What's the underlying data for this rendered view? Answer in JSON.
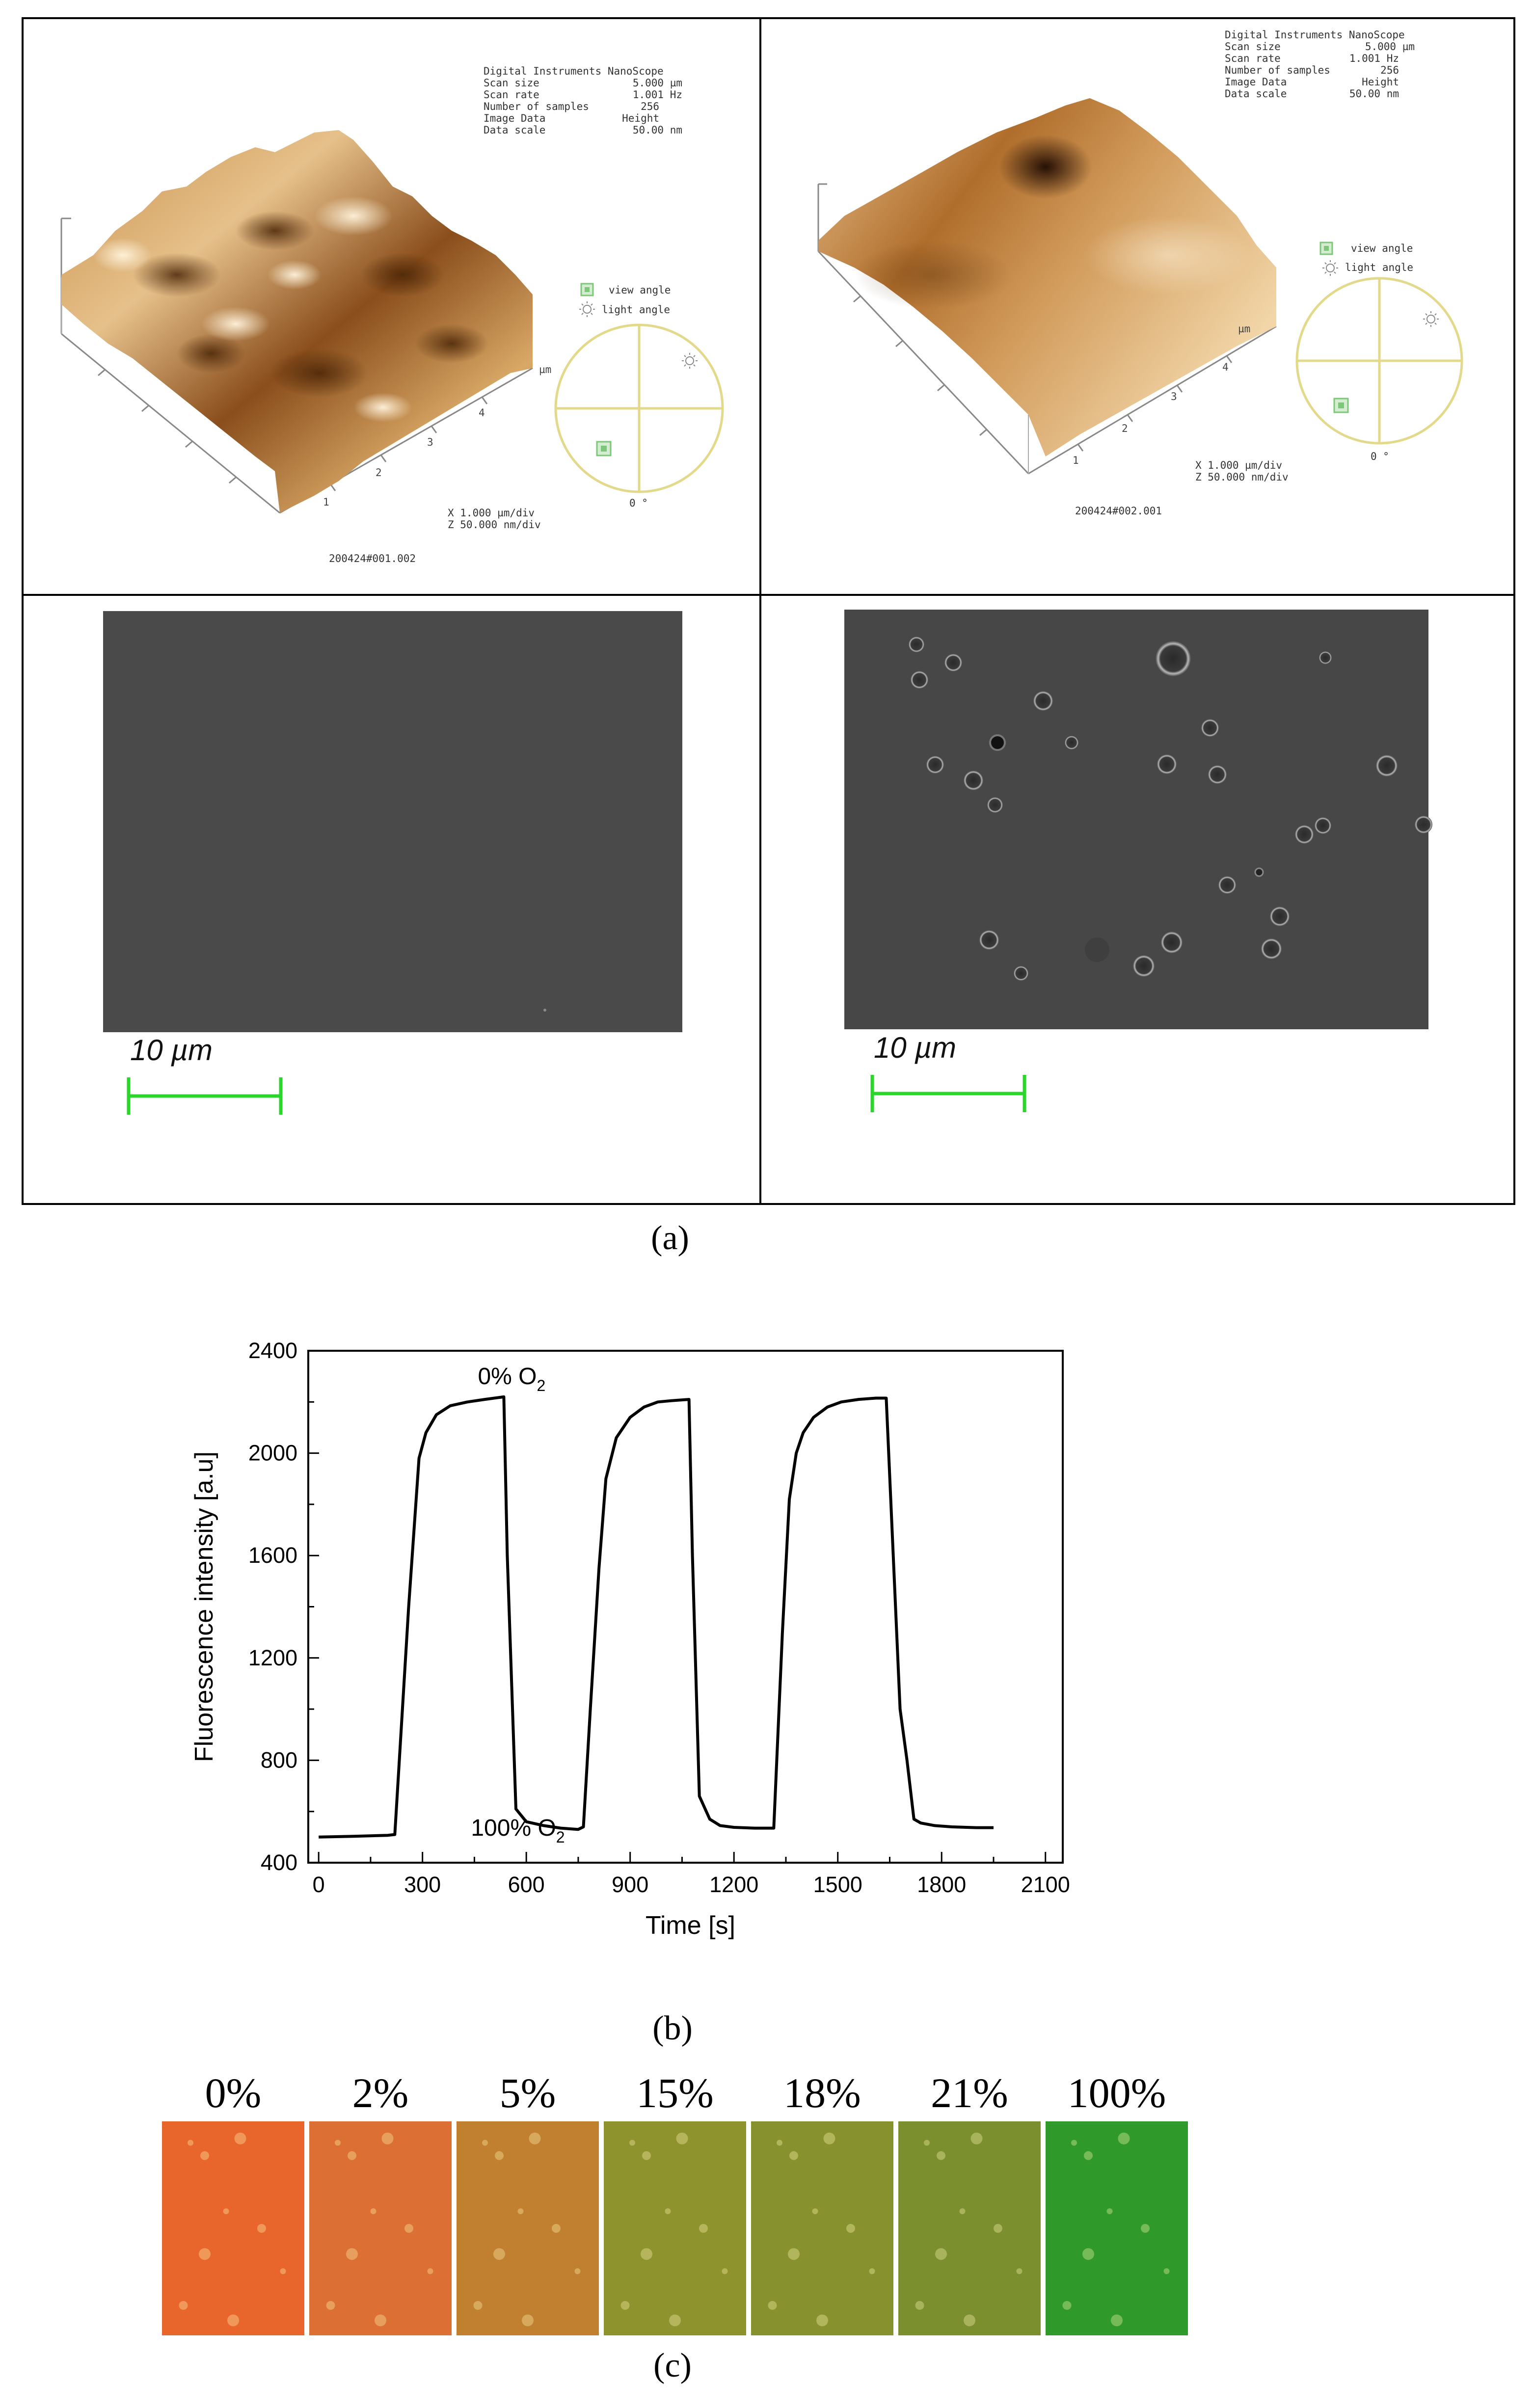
{
  "panel_a": {
    "afm_left": {
      "info_rows": [
        {
          "label": "Digital Instruments NanoScope",
          "value": ""
        },
        {
          "label": "Scan size",
          "value": "5.000 µm"
        },
        {
          "label": "Scan rate",
          "value": "1.001 Hz"
        },
        {
          "label": "Number of samples",
          "value": "256"
        },
        {
          "label": "Image Data",
          "value": "Height"
        },
        {
          "label": "Data scale",
          "value": "50.00 nm"
        }
      ],
      "view_angle": "view angle",
      "light_angle": "light angle",
      "zero_label": "0 °",
      "axis_unit": "µm",
      "axis_ticks": [
        "1",
        "2",
        "3",
        "4"
      ],
      "scale_x": "X  1.000 µm/div",
      "scale_z": "Z  50.000 nm/div",
      "file_id": "200424#001.002"
    },
    "afm_right": {
      "info_rows": [
        {
          "label": "Digital Instruments NanoScope",
          "value": ""
        },
        {
          "label": "Scan size",
          "value": "5.000 µm"
        },
        {
          "label": "Scan rate",
          "value": "1.001 Hz"
        },
        {
          "label": "Number of samples",
          "value": "256"
        },
        {
          "label": "Image Data",
          "value": "Height"
        },
        {
          "label": "Data scale",
          "value": "50.00 nm"
        }
      ],
      "view_angle": "view angle",
      "light_angle": "light angle",
      "zero_label": "0 °",
      "axis_unit": "µm",
      "axis_ticks": [
        "1",
        "2",
        "3",
        "4"
      ],
      "scale_x": "X  1.000 µm/div",
      "scale_z": "Z  50.000 nm/div",
      "file_id": "200424#002.001"
    },
    "sem_left": {
      "scale_label": "10 µm"
    },
    "sem_right": {
      "scale_label": "10 µm"
    },
    "caption": "(a)"
  },
  "chart_data": {
    "type": "line",
    "title": "",
    "xlabel": "Time [s]",
    "ylabel": "Fluorescence intensity [a.u]",
    "xlim": [
      -30,
      2150
    ],
    "ylim": [
      400,
      2400
    ],
    "xticks": [
      0,
      300,
      600,
      900,
      1200,
      1500,
      1800,
      2100
    ],
    "yticks": [
      400,
      800,
      1200,
      1600,
      2000,
      2400
    ],
    "grid": false,
    "legend": "none",
    "annotations": [
      {
        "text": "0% O",
        "sub": "2",
        "x": 460,
        "y": 2270
      },
      {
        "text": "100% O",
        "sub": "2",
        "x": 440,
        "y": 505
      }
    ],
    "series": [
      {
        "color": "#000000",
        "x": [
          0,
          100,
          200,
          220,
          260,
          290,
          310,
          340,
          380,
          430,
          480,
          535,
          545,
          570,
          600,
          650,
          700,
          750,
          765,
          785,
          810,
          830,
          860,
          900,
          940,
          980,
          1020,
          1070,
          1080,
          1100,
          1130,
          1160,
          1200,
          1260,
          1315,
          1340,
          1360,
          1380,
          1400,
          1430,
          1470,
          1510,
          1560,
          1610,
          1640,
          1680,
          1700,
          1720,
          1740,
          1780,
          1830,
          1900,
          1950
        ],
        "y": [
          500,
          503,
          507,
          510,
          1400,
          1980,
          2080,
          2150,
          2185,
          2200,
          2210,
          2220,
          1600,
          610,
          560,
          545,
          535,
          530,
          540,
          1000,
          1550,
          1900,
          2060,
          2140,
          2180,
          2200,
          2205,
          2210,
          1600,
          660,
          570,
          545,
          538,
          535,
          535,
          1300,
          1820,
          2000,
          2080,
          2140,
          2180,
          2200,
          2210,
          2215,
          2215,
          1000,
          800,
          570,
          555,
          545,
          540,
          537,
          537
        ]
      }
    ]
  },
  "panel_b": {
    "caption": "(b)"
  },
  "panel_c": {
    "tiles": [
      {
        "label": "0%",
        "color": "#e8662c"
      },
      {
        "label": "2%",
        "color": "#dc7034"
      },
      {
        "label": "5%",
        "color": "#c08030"
      },
      {
        "label": "15%",
        "color": "#8f932e"
      },
      {
        "label": "18%",
        "color": "#87922e"
      },
      {
        "label": "21%",
        "color": "#7b8f2e"
      },
      {
        "label": "100%",
        "color": "#2f9a2a"
      }
    ],
    "caption": "(c)"
  }
}
